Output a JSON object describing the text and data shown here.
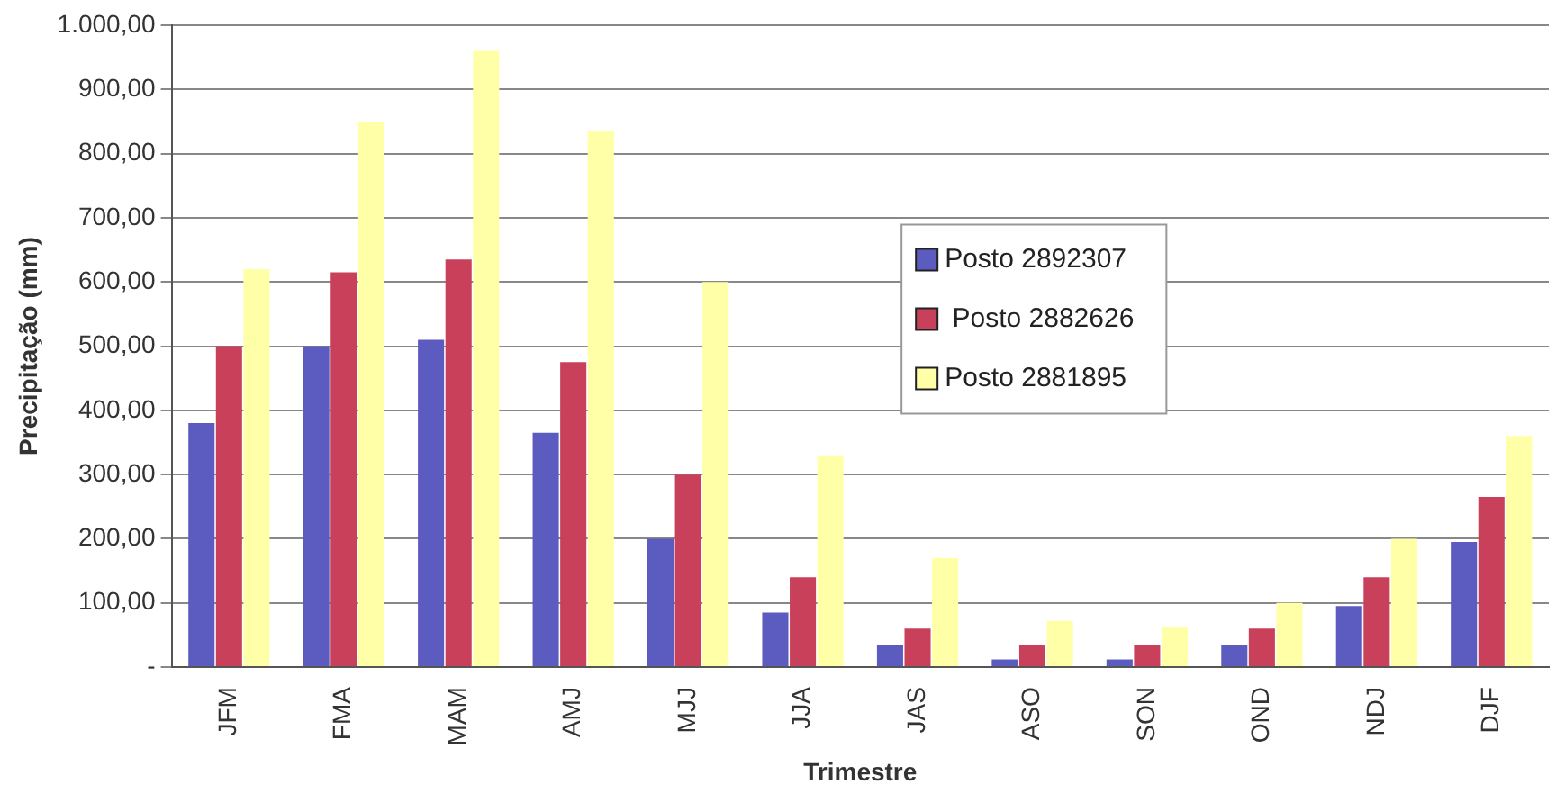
{
  "chart_data": {
    "type": "bar",
    "xlabel": "Trimestre",
    "ylabel": "Precipitação (mm)",
    "categories": [
      "JFM",
      "FMA",
      "MAM",
      "AMJ",
      "MJJ",
      "JJA",
      "JAS",
      "ASO",
      "SON",
      "OND",
      "NDJ",
      "DJF"
    ],
    "series": [
      {
        "name": "Posto 2892307",
        "color": "#5b5bc0",
        "values": [
          380,
          500,
          510,
          365,
          200,
          85,
          35,
          12,
          12,
          35,
          95,
          195
        ]
      },
      {
        "name": " Posto 2882626",
        "color": "#c8405a",
        "values": [
          500,
          615,
          635,
          475,
          300,
          140,
          60,
          35,
          35,
          60,
          140,
          265
        ]
      },
      {
        "name": "Posto 2881895",
        "color": "#ffffa8",
        "values": [
          620,
          850,
          960,
          835,
          600,
          330,
          170,
          72,
          62,
          100,
          200,
          360
        ]
      }
    ],
    "ylim": [
      0,
      1000
    ],
    "yticks": [
      {
        "value": 0,
        "label": "-"
      },
      {
        "value": 100,
        "label": "100,00"
      },
      {
        "value": 200,
        "label": "200,00"
      },
      {
        "value": 300,
        "label": "300,00"
      },
      {
        "value": 400,
        "label": "400,00"
      },
      {
        "value": 500,
        "label": "500,00"
      },
      {
        "value": 600,
        "label": "600,00"
      },
      {
        "value": 700,
        "label": "700,00"
      },
      {
        "value": 800,
        "label": "800,00"
      },
      {
        "value": 900,
        "label": "900,00"
      },
      {
        "value": 1000,
        "label": "1.000,00"
      }
    ],
    "grid": "y",
    "legend": "center"
  }
}
